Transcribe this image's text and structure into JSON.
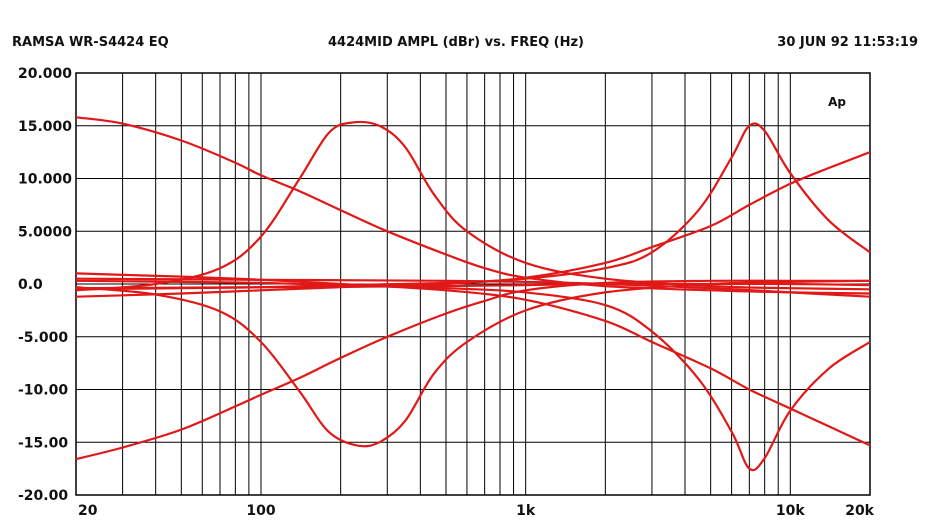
{
  "header": {
    "left": "RAMSA WR-S4424   EQ",
    "center": "4424MID AMPL (dBr) vs. FREQ (Hz)",
    "right": "30 JUN 92 11:53:19"
  },
  "chart_data": {
    "type": "line",
    "title": "4424MID AMPL (dBr) vs. FREQ (Hz)",
    "xlabel": "",
    "ylabel": "",
    "x_scale": "log",
    "xlim": [
      20,
      20000
    ],
    "ylim": [
      -20,
      20
    ],
    "grid": true,
    "trace_label": "Ap",
    "x_tick_labels": [
      {
        "value": 20,
        "label": "20"
      },
      {
        "value": 100,
        "label": "100"
      },
      {
        "value": 1000,
        "label": "1k"
      },
      {
        "value": 10000,
        "label": "10k"
      },
      {
        "value": 20000,
        "label": "20k"
      }
    ],
    "y_tick_labels": [
      {
        "value": 20,
        "label": "20.000"
      },
      {
        "value": 15,
        "label": "15.000"
      },
      {
        "value": 10,
        "label": "10.000"
      },
      {
        "value": 5,
        "label": "5.0000"
      },
      {
        "value": 0,
        "label": "0.0"
      },
      {
        "value": -5,
        "label": "-5.000"
      },
      {
        "value": -10,
        "label": "-10.00"
      },
      {
        "value": -15,
        "label": "-15.00"
      },
      {
        "value": -20,
        "label": "-20.00"
      }
    ],
    "colors": {
      "curve": "#e01818",
      "grid": "#000000"
    },
    "series": [
      {
        "x": [
          20,
          30,
          50,
          80,
          100,
          140,
          200,
          300,
          500,
          700,
          1000,
          2000,
          5000,
          10000,
          20000
        ],
        "y": [
          15.8,
          15.2,
          13.6,
          11.5,
          10.3,
          8.8,
          7.0,
          5.0,
          2.8,
          1.5,
          0.6,
          -0.2,
          -0.6,
          -0.8,
          -0.9
        ]
      },
      {
        "x": [
          20,
          30,
          50,
          80,
          100,
          140,
          200,
          300,
          500,
          700,
          1000,
          2000,
          5000,
          10000,
          20000
        ],
        "y": [
          -16.6,
          -15.5,
          -13.8,
          -11.6,
          -10.5,
          -8.9,
          -7.0,
          -5.0,
          -2.8,
          -1.6,
          -0.6,
          0.1,
          0.3,
          0.3,
          0.3
        ]
      },
      {
        "x": [
          20,
          40,
          70,
          100,
          140,
          180,
          220,
          280,
          350,
          450,
          600,
          1000,
          2000,
          5000,
          10000,
          20000
        ],
        "y": [
          -0.6,
          0.0,
          1.5,
          4.5,
          10.0,
          14.3,
          15.3,
          15.0,
          13.0,
          8.5,
          5.0,
          2.0,
          0.5,
          -0.2,
          -0.4,
          -0.5
        ]
      },
      {
        "x": [
          20,
          40,
          70,
          100,
          140,
          180,
          230,
          280,
          350,
          450,
          600,
          1000,
          2000,
          5000,
          10000,
          20000
        ],
        "y": [
          -0.3,
          -1.0,
          -2.6,
          -5.5,
          -10.2,
          -14.0,
          -15.3,
          -15.0,
          -13.0,
          -8.5,
          -5.5,
          -2.5,
          -0.8,
          0.0,
          0.2,
          0.3
        ]
      },
      {
        "x": [
          20,
          50,
          100,
          200,
          500,
          1000,
          2000,
          3000,
          4500,
          6000,
          7000,
          8000,
          10000,
          14000,
          20000
        ],
        "y": [
          -0.5,
          -0.4,
          -0.3,
          -0.1,
          0.1,
          0.5,
          1.5,
          3.0,
          7.0,
          12.0,
          15.0,
          14.5,
          10.5,
          6.0,
          3.0
        ]
      },
      {
        "x": [
          20,
          50,
          100,
          200,
          500,
          1000,
          2000,
          3000,
          4500,
          6000,
          7000,
          8000,
          10000,
          14000,
          20000
        ],
        "y": [
          0.3,
          0.2,
          0.1,
          -0.1,
          -0.4,
          -0.8,
          -2.0,
          -4.5,
          -9.0,
          -14.0,
          -17.5,
          -16.5,
          -12.0,
          -8.0,
          -5.5
        ]
      },
      {
        "x": [
          20,
          50,
          100,
          200,
          500,
          1000,
          2000,
          3000,
          5000,
          7000,
          10000,
          14000,
          20000
        ],
        "y": [
          -1.2,
          -0.9,
          -0.6,
          -0.3,
          0.0,
          0.6,
          2.0,
          3.5,
          5.5,
          7.5,
          9.5,
          11.0,
          12.5
        ]
      },
      {
        "x": [
          20,
          50,
          100,
          200,
          500,
          1000,
          2000,
          3000,
          5000,
          7000,
          10000,
          14000,
          20000
        ],
        "y": [
          1.0,
          0.7,
          0.4,
          0.0,
          -0.6,
          -1.5,
          -3.5,
          -5.5,
          -8.0,
          -10.0,
          -11.8,
          -13.5,
          -15.3
        ]
      },
      {
        "x": [
          20,
          100,
          500,
          1000,
          2000,
          5000,
          10000,
          20000
        ],
        "y": [
          0.5,
          0.4,
          0.3,
          0.2,
          0.0,
          -0.4,
          -0.8,
          -1.2
        ]
      },
      {
        "x": [
          20,
          100,
          500,
          1000,
          2000,
          5000,
          10000,
          20000
        ],
        "y": [
          -0.4,
          -0.3,
          -0.2,
          -0.1,
          0.0,
          0.0,
          0.0,
          -0.1
        ]
      }
    ]
  }
}
